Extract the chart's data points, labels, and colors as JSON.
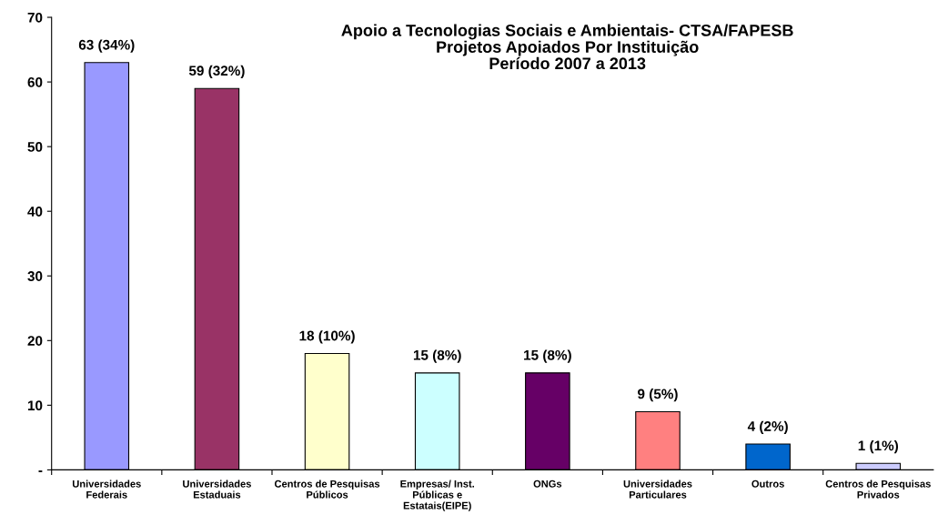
{
  "chart_data": {
    "type": "bar",
    "title": "Apoio a Tecnologias Sociais e Ambientais- CTSA/FAPESB\nProjetos Apoiados Por Instituição\nPeríodo 2007 a 2013",
    "categories": [
      "Universidades\nFederais",
      "Universidades\nEstaduais",
      "Centros de Pesquisas\nPúblicos",
      "Empresas/ Inst.\nPúblicas e\nEstatais(EIPE)",
      "ONGs",
      "Universidades\nParticulares",
      "Outros",
      "Centros de Pesquisas\nPrivados"
    ],
    "values": [
      63,
      59,
      18,
      15,
      15,
      9,
      4,
      1
    ],
    "colors": [
      "#9999ff",
      "#993366",
      "#ffffcc",
      "#ccffff",
      "#660066",
      "#ff8080",
      "#0066cc",
      "#ccccff"
    ],
    "value_labels": [
      "63 (34%)",
      "59 (32%)",
      "18 (10%)",
      "15 (8%)",
      "15 (8%)",
      "9 (5%)",
      "4 (2%)",
      "1 (1%)"
    ],
    "ylim": [
      0,
      70
    ],
    "yticks": [
      {
        "value": 0,
        "label": "-"
      },
      10,
      20,
      30,
      40,
      50,
      60,
      70
    ],
    "grid": false
  }
}
